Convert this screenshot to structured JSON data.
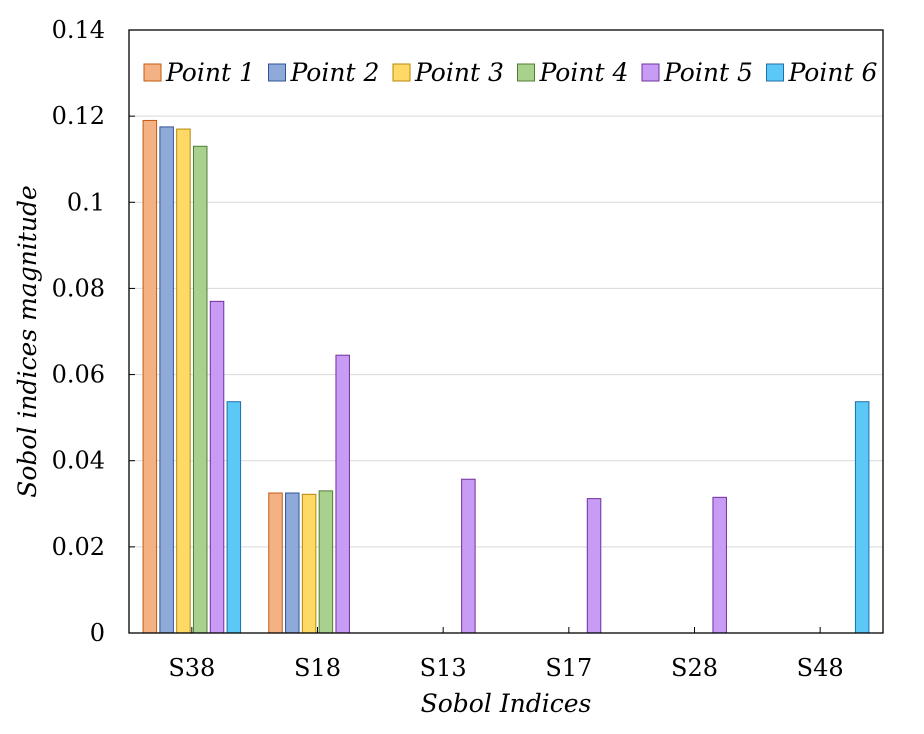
{
  "chart_data": {
    "type": "bar",
    "title": "",
    "xlabel": "Sobol Indices",
    "ylabel": "Sobol indices magnitude",
    "ylim": [
      0,
      0.14
    ],
    "yticks": [
      0,
      0.02,
      0.04,
      0.06,
      0.08,
      0.1,
      0.12,
      0.14
    ],
    "ytick_labels": [
      "0",
      "0.02",
      "0.04",
      "0.06",
      "0.08",
      "0.1",
      "0.12",
      "0.14"
    ],
    "grid": "horizontal",
    "legend_position": "top",
    "categories": [
      "S38",
      "S18",
      "S13",
      "S17",
      "S28",
      "S48"
    ],
    "series": [
      {
        "name": "Point 1",
        "color": "#f4b183",
        "stroke": "#c55a11",
        "values": [
          0.119,
          0.0325,
          null,
          null,
          null,
          null
        ]
      },
      {
        "name": "Point 2",
        "color": "#8fa9d8",
        "stroke": "#2f5597",
        "values": [
          0.1175,
          0.0325,
          null,
          null,
          null,
          null
        ]
      },
      {
        "name": "Point 3",
        "color": "#ffd966",
        "stroke": "#b8860b",
        "values": [
          0.117,
          0.0322,
          null,
          null,
          null,
          null
        ]
      },
      {
        "name": "Point 4",
        "color": "#a9d18e",
        "stroke": "#507e32",
        "values": [
          0.113,
          0.033,
          null,
          null,
          null,
          null
        ]
      },
      {
        "name": "Point 5",
        "color": "#c89bf5",
        "stroke": "#7030a0",
        "values": [
          0.077,
          0.0645,
          0.0357,
          0.0312,
          0.0315,
          null
        ]
      },
      {
        "name": "Point 6",
        "color": "#5bc8f7",
        "stroke": "#1f6fa8",
        "values": [
          0.0537,
          null,
          null,
          null,
          null,
          0.0537
        ]
      }
    ]
  }
}
